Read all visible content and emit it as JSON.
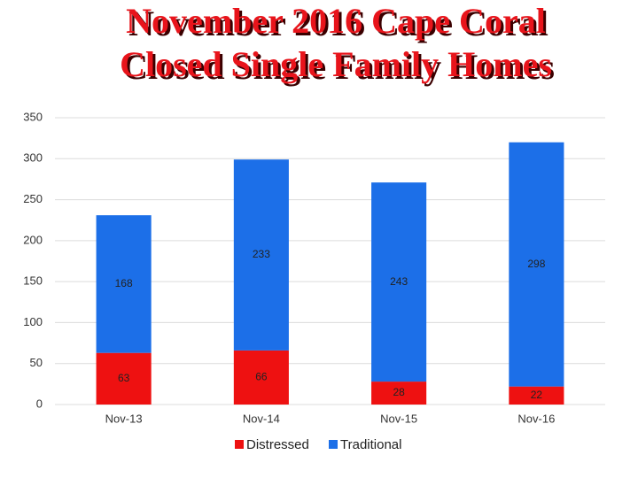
{
  "chart_data": {
    "type": "bar",
    "stacked": true,
    "title": [
      "November 2016 Cape Coral",
      "Closed Single Family Homes"
    ],
    "categories": [
      "Nov-13",
      "Nov-14",
      "Nov-15",
      "Nov-16"
    ],
    "series": [
      {
        "name": "Distressed",
        "color": "#ee1111",
        "values": [
          63,
          66,
          28,
          22
        ]
      },
      {
        "name": "Traditional",
        "color": "#1c6fe8",
        "values": [
          168,
          233,
          243,
          298
        ]
      }
    ],
    "ylim": [
      0,
      350
    ],
    "yticks": [
      0,
      50,
      100,
      150,
      200,
      250,
      300,
      350
    ],
    "grid": true,
    "legend": "bottom"
  }
}
